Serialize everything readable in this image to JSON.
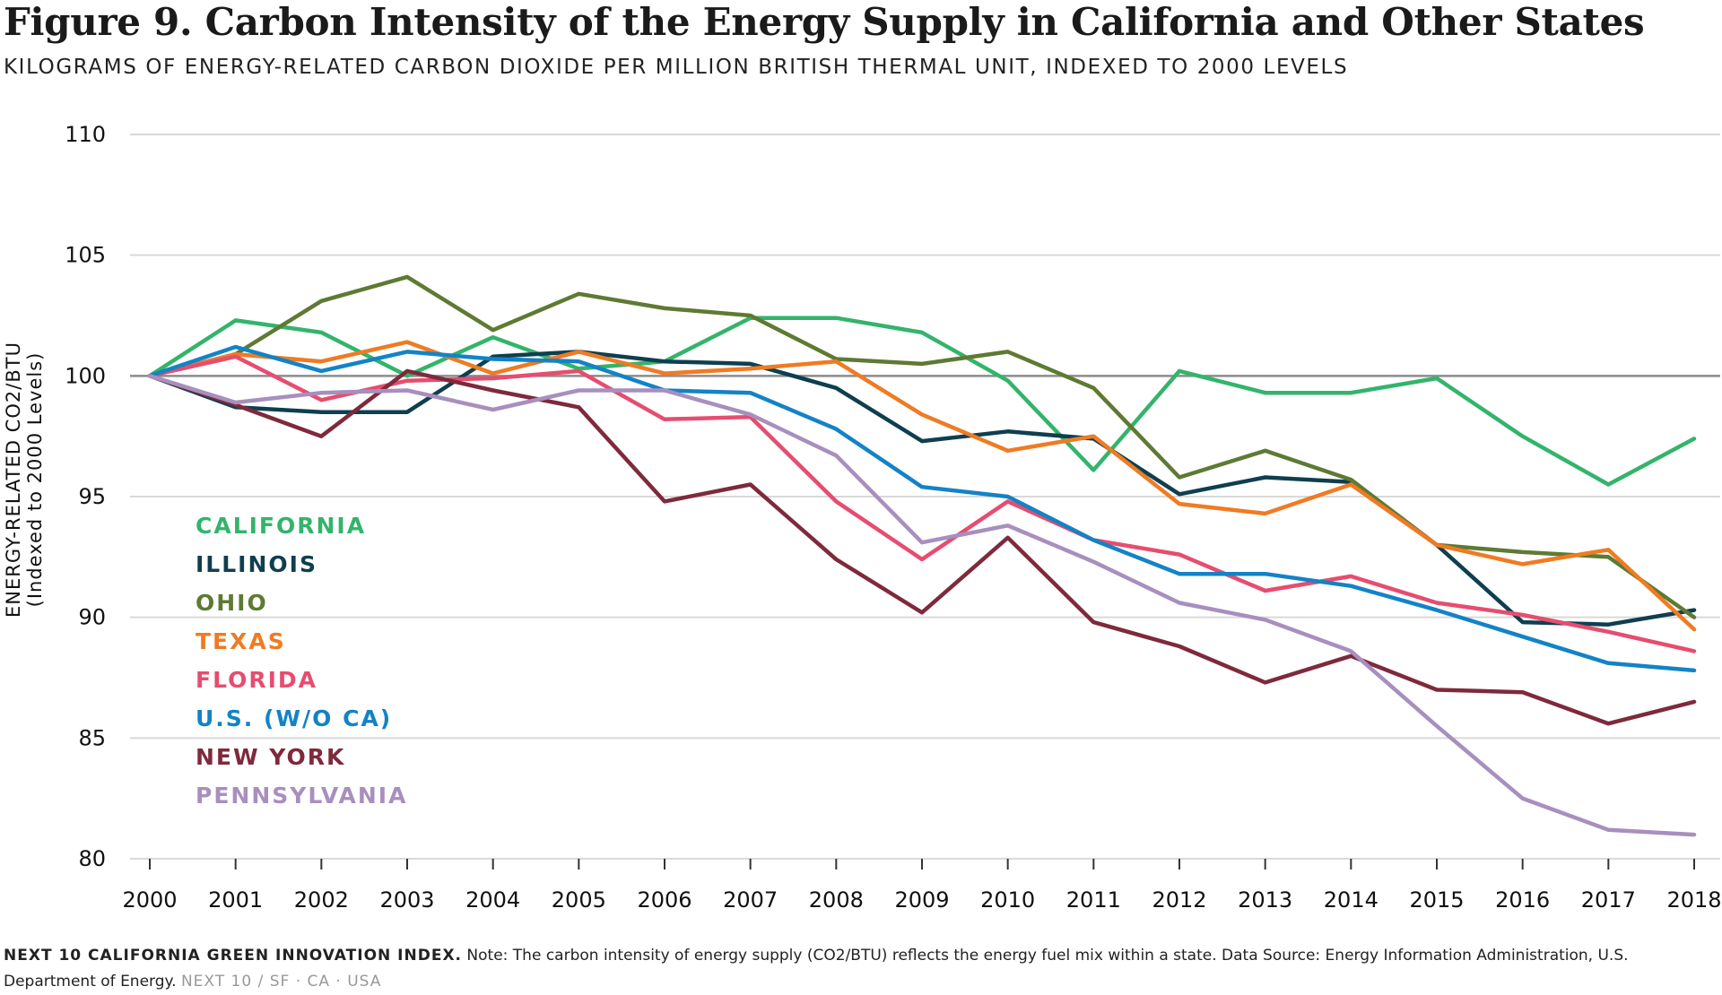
{
  "title": "Figure 9. Carbon Intensity of the Energy Supply in California and Other States",
  "subtitle": "KILOGRAMS OF ENERGY-RELATED CARBON DIOXIDE PER MILLION BRITISH THERMAL UNIT, INDEXED TO 2000 LEVELS",
  "footer": {
    "brand": "NEXT 10 CALIFORNIA GREEN INNOVATION INDEX.",
    "note": " Note: The carbon intensity of energy supply (CO2/BTU) reflects the energy fuel mix within a state. Data Source: Energy Information Administration, U.S. Department of Energy.",
    "tag": "NEXT 10  /  SF · CA · USA"
  },
  "chart_data": {
    "type": "line",
    "title": "Figure 9. Carbon Intensity of the Energy Supply in California and Other States",
    "subtitle": "KILOGRAMS OF ENERGY-RELATED CARBON DIOXIDE PER MILLION BRITISH THERMAL UNIT, INDEXED TO 2000 LEVELS",
    "ylabel": "ENERGY-RELATED CO2/BTU",
    "ylabel_sub": "(Indexed to 2000 Levels)",
    "xlabel": "",
    "ylim": [
      80,
      110
    ],
    "yticks": [
      80,
      85,
      90,
      95,
      100,
      105,
      110
    ],
    "x": [
      "2000",
      "2001",
      "2002",
      "2003",
      "2004",
      "2005",
      "2006",
      "2007",
      "2008",
      "2009",
      "2010",
      "2011",
      "2012",
      "2013",
      "2014",
      "2015",
      "2016",
      "2017",
      "2018"
    ],
    "reference_line": 100,
    "grid": "horizontal",
    "legend_position": "left-center",
    "series": [
      {
        "name": "CALIFORNIA",
        "color": "#33b46b",
        "values": [
          100,
          102.3,
          101.8,
          100.0,
          101.6,
          100.3,
          100.6,
          102.4,
          102.4,
          101.8,
          99.8,
          96.1,
          100.2,
          99.3,
          99.3,
          99.9,
          97.5,
          95.5,
          97.4
        ]
      },
      {
        "name": "ILLINOIS",
        "color": "#0f3f4f",
        "values": [
          100,
          98.7,
          98.5,
          98.5,
          100.8,
          101.0,
          100.6,
          100.5,
          99.5,
          97.3,
          97.7,
          97.4,
          95.1,
          95.8,
          95.6,
          93.0,
          89.8,
          89.7,
          90.3
        ]
      },
      {
        "name": "OHIO",
        "color": "#5e7a33",
        "values": [
          100,
          100.9,
          103.1,
          104.1,
          101.9,
          103.4,
          102.8,
          102.5,
          100.7,
          100.5,
          101.0,
          99.5,
          95.8,
          96.9,
          95.7,
          93.0,
          92.7,
          92.5,
          90.0
        ]
      },
      {
        "name": "TEXAS",
        "color": "#ef7b23",
        "values": [
          100,
          100.9,
          100.6,
          101.4,
          100.1,
          101.0,
          100.1,
          100.3,
          100.6,
          98.4,
          96.9,
          97.5,
          94.7,
          94.3,
          95.5,
          93.0,
          92.2,
          92.8,
          89.5
        ]
      },
      {
        "name": "FLORIDA",
        "color": "#e64d6f",
        "values": [
          100,
          100.8,
          99.0,
          99.8,
          99.9,
          100.2,
          98.2,
          98.3,
          94.8,
          92.4,
          94.8,
          93.2,
          92.6,
          91.1,
          91.7,
          90.6,
          90.1,
          89.4,
          88.6
        ]
      },
      {
        "name": "U.S. (W/O CA)",
        "color": "#1383c6",
        "values": [
          100,
          101.2,
          100.2,
          101.0,
          100.7,
          100.6,
          99.4,
          99.3,
          97.8,
          95.4,
          95.0,
          93.2,
          91.8,
          91.8,
          91.3,
          90.3,
          89.2,
          88.1,
          87.8
        ]
      },
      {
        "name": "NEW YORK",
        "color": "#7e2a3c",
        "values": [
          100,
          98.8,
          97.5,
          100.2,
          99.4,
          98.7,
          94.8,
          95.5,
          92.4,
          90.2,
          93.3,
          89.8,
          88.8,
          87.3,
          88.4,
          87.0,
          86.9,
          85.6,
          86.5
        ]
      },
      {
        "name": "PENNSYLVANIA",
        "color": "#a78fbe",
        "values": [
          100,
          98.9,
          99.3,
          99.4,
          98.6,
          99.4,
          99.4,
          98.4,
          96.7,
          93.1,
          93.8,
          92.3,
          90.6,
          89.9,
          88.6,
          85.5,
          82.5,
          81.2,
          81.0
        ]
      }
    ]
  }
}
